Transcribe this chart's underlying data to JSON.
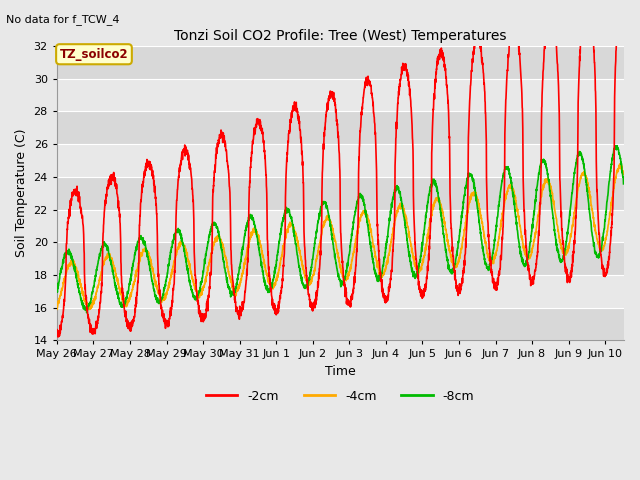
{
  "title": "Tonzi Soil CO2 Profile: Tree (West) Temperatures",
  "subtitle": "No data for f_TCW_4",
  "xlabel": "Time",
  "ylabel": "Soil Temperature (C)",
  "ylim": [
    14,
    32
  ],
  "yticks": [
    14,
    16,
    18,
    20,
    22,
    24,
    26,
    28,
    30,
    32
  ],
  "legend_box_label": "TZ_soilco2",
  "legend_box_color": "#ffffcc",
  "legend_box_edge": "#ccaa00",
  "bg_color": "#e8e8e8",
  "plot_bg_color": "#e8e8e8",
  "grid_color": "#ffffff",
  "line_colors": {
    "-2cm": "#ff0000",
    "-4cm": "#ffaa00",
    "-8cm": "#00bb00"
  },
  "line_widths": {
    "-2cm": 1.2,
    "-4cm": 1.2,
    "-8cm": 1.2
  },
  "xtick_labels": [
    "May 26",
    "May 27",
    "May 28",
    "May 29",
    "May 30",
    "May 31",
    "Jun 1",
    "Jun 2",
    "Jun 3",
    "Jun 4",
    "Jun 5",
    "Jun 6",
    "Jun 7",
    "Jun 8",
    "Jun 9",
    "Jun 10"
  ],
  "num_days": 15.5
}
